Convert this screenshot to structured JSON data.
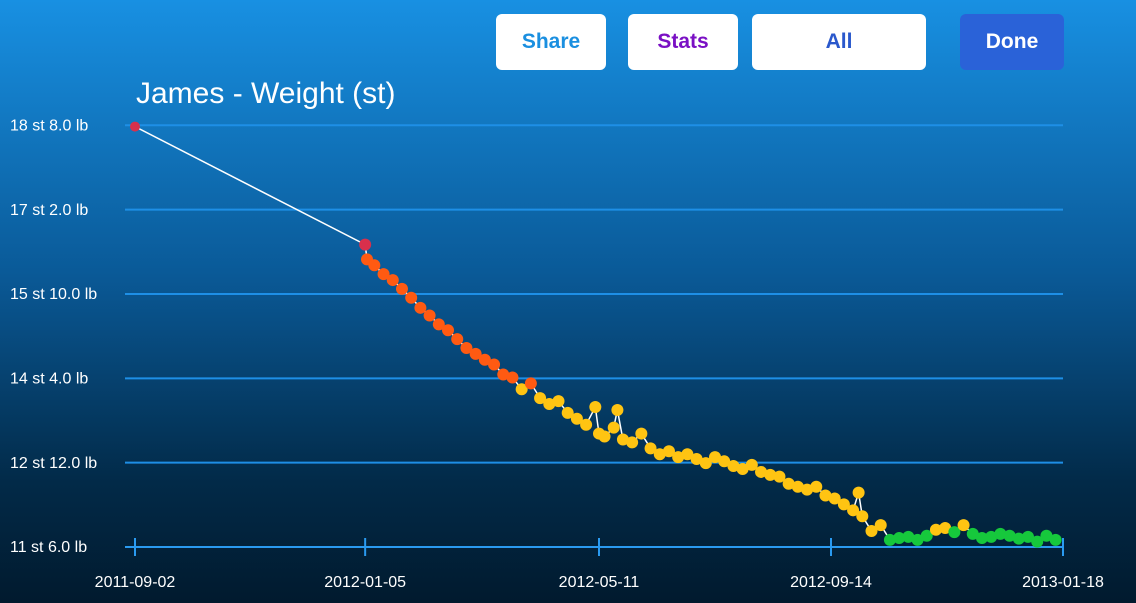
{
  "buttons": [
    "Share",
    "Stats",
    "All",
    "Done"
  ],
  "chart_data": {
    "type": "line",
    "title": "James - Weight (st)",
    "xlim": [
      "2011-09-02",
      "2013-01-18"
    ],
    "xticks": [
      "2011-09-02",
      "2012-01-05",
      "2012-05-11",
      "2012-09-14",
      "2013-01-18"
    ],
    "ylim": [
      11.4286,
      19.0
    ],
    "yticks": [
      {
        "value": 11.4286,
        "label": "11 st 6.0 lb"
      },
      {
        "value": 12.8571,
        "label": "12 st 12.0 lb"
      },
      {
        "value": 14.2857,
        "label": "14 st 4.0 lb"
      },
      {
        "value": 15.7143,
        "label": "15 st 10.0 lb"
      },
      {
        "value": 17.1429,
        "label": "17 st 2.0 lb"
      },
      {
        "value": 18.5714,
        "label": "18 st 8.0 lb"
      }
    ],
    "grid": true,
    "line_color": "#ffffff",
    "color_bands": [
      {
        "min": 16.4,
        "color": "#d8304c"
      },
      {
        "min": 14.15,
        "color": "#ff5a12"
      },
      {
        "min": 11.7,
        "color": "#ffc412"
      },
      {
        "min": 0,
        "color": "#16c83c"
      }
    ],
    "x": [
      "2011-09-02",
      "2012-01-05",
      "2012-01-06",
      "2012-01-10",
      "2012-01-15",
      "2012-01-20",
      "2012-01-25",
      "2012-01-30",
      "2012-02-04",
      "2012-02-09",
      "2012-02-14",
      "2012-02-19",
      "2012-02-24",
      "2012-02-29",
      "2012-03-05",
      "2012-03-10",
      "2012-03-15",
      "2012-03-20",
      "2012-03-25",
      "2012-03-30",
      "2012-04-04",
      "2012-04-09",
      "2012-04-14",
      "2012-04-19",
      "2012-04-24",
      "2012-04-29",
      "2012-05-04",
      "2012-05-09",
      "2012-05-11",
      "2012-05-14",
      "2012-05-19",
      "2012-05-21",
      "2012-05-24",
      "2012-05-29",
      "2012-06-03",
      "2012-06-08",
      "2012-06-13",
      "2012-06-18",
      "2012-06-23",
      "2012-06-28",
      "2012-07-03",
      "2012-07-08",
      "2012-07-13",
      "2012-07-18",
      "2012-07-23",
      "2012-07-28",
      "2012-08-02",
      "2012-08-07",
      "2012-08-12",
      "2012-08-17",
      "2012-08-22",
      "2012-08-27",
      "2012-09-01",
      "2012-09-06",
      "2012-09-11",
      "2012-09-16",
      "2012-09-21",
      "2012-09-26",
      "2012-09-29",
      "2012-10-01",
      "2012-10-06",
      "2012-10-11",
      "2012-10-16",
      "2012-10-21",
      "2012-10-26",
      "2012-10-31",
      "2012-11-05",
      "2012-11-10",
      "2012-11-15",
      "2012-11-20",
      "2012-11-25",
      "2012-11-30",
      "2012-12-05",
      "2012-12-10",
      "2012-12-15",
      "2012-12-20",
      "2012-12-25",
      "2012-12-30",
      "2013-01-04",
      "2013-01-09",
      "2013-01-14"
    ],
    "values": [
      18.55,
      16.55,
      16.3,
      16.2,
      16.05,
      15.95,
      15.8,
      15.65,
      15.48,
      15.35,
      15.2,
      15.1,
      14.95,
      14.8,
      14.7,
      14.6,
      14.52,
      14.35,
      14.3,
      14.1,
      14.2,
      13.95,
      13.85,
      13.9,
      13.7,
      13.6,
      13.5,
      13.8,
      13.35,
      13.3,
      13.45,
      13.75,
      13.25,
      13.2,
      13.35,
      13.1,
      13.0,
      13.05,
      12.95,
      13.0,
      12.92,
      12.85,
      12.95,
      12.88,
      12.8,
      12.75,
      12.82,
      12.7,
      12.65,
      12.62,
      12.5,
      12.45,
      12.4,
      12.45,
      12.3,
      12.25,
      12.15,
      12.05,
      12.35,
      11.95,
      11.7,
      11.8,
      11.55,
      11.58,
      11.6,
      11.55,
      11.62,
      11.72,
      11.75,
      11.68,
      11.8,
      11.65,
      11.58,
      11.6,
      11.65,
      11.62,
      11.57,
      11.6,
      11.52,
      11.62,
      11.55
    ]
  }
}
